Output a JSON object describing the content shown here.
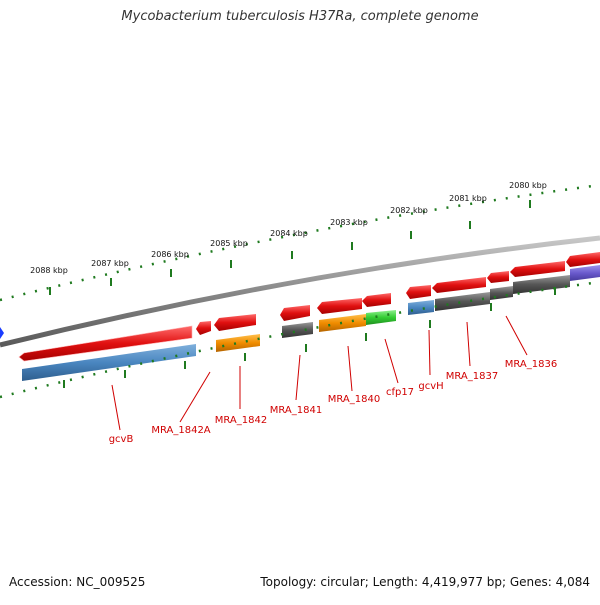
{
  "title": "Mycobacterium tuberculosis H37Ra, complete genome",
  "footer": {
    "accession": "Accession: NC_009525",
    "summary": "Topology: circular; Length: 4,419,977 bp; Genes: 4,084"
  },
  "ruler": {
    "kbp_labels": [
      "2088 kbp",
      "2087 kbp",
      "2086 kbp",
      "2085 kbp",
      "2084 kbp",
      "2083 kbp",
      "2082 kbp",
      "2081 kbp",
      "2080 kbp"
    ]
  },
  "gene_labels": [
    "gcvB",
    "MRA_1842A",
    "MRA_1842",
    "MRA_1841",
    "MRA_1840",
    "cfp17",
    "gcvH",
    "MRA_1837",
    "MRA_1836"
  ],
  "colors": {
    "cds_forward": "#e01010",
    "gene_blue": "#4a86c0",
    "gene_orange": "#f08c00",
    "gene_green": "#33cc33",
    "gene_gray": "#555555",
    "gene_purple": "#6a5acd",
    "backbone": "#888888",
    "ruler_tick": "#1f7a1f",
    "label_red": "#d00000",
    "marker_blue": "#1a3cff"
  }
}
